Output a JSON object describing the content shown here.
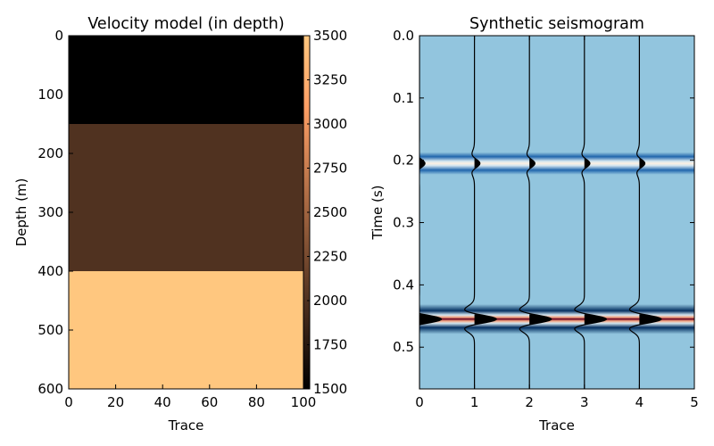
{
  "chart_data": [
    {
      "type": "heatmap",
      "title": "Velocity model (in depth)",
      "xlabel": "Trace",
      "ylabel": "Depth (m)",
      "xlim": [
        0,
        100
      ],
      "ylim": [
        600,
        0
      ],
      "x_ticks": [
        "0",
        "20",
        "40",
        "60",
        "80",
        "100"
      ],
      "y_ticks": [
        "0",
        "100",
        "200",
        "300",
        "400",
        "500",
        "600"
      ],
      "layers": [
        {
          "depth_top": 0,
          "depth_bottom": 150,
          "velocity": 1500
        },
        {
          "depth_top": 150,
          "depth_bottom": 400,
          "velocity": 2000
        },
        {
          "depth_top": 400,
          "depth_bottom": 600,
          "velocity": 3500
        }
      ],
      "colorbar": {
        "min": 1500,
        "max": 3500,
        "colormap": "copper",
        "ticks": [
          "1500",
          "1750",
          "2000",
          "2250",
          "2500",
          "2750",
          "3000",
          "3250",
          "3500"
        ]
      }
    },
    {
      "type": "heatmap",
      "title": "Synthetic seismogram",
      "xlabel": "Trace",
      "ylabel": "Time (s)",
      "xlim": [
        0,
        5
      ],
      "ylim": [
        0.567,
        0.0
      ],
      "x_ticks": [
        "0",
        "1",
        "2",
        "3",
        "4",
        "5"
      ],
      "y_ticks": [
        "0.0",
        "0.1",
        "0.2",
        "0.3",
        "0.4",
        "0.5"
      ],
      "colormap": "RdBu_r",
      "background_color": "#92c5de",
      "traces": [
        0,
        1,
        2,
        3,
        4
      ],
      "reflections": [
        {
          "time": 0.205,
          "amplitude": 0.1
        },
        {
          "time": 0.455,
          "amplitude": 0.4
        }
      ],
      "wiggle_fill_color": "#000000"
    }
  ]
}
